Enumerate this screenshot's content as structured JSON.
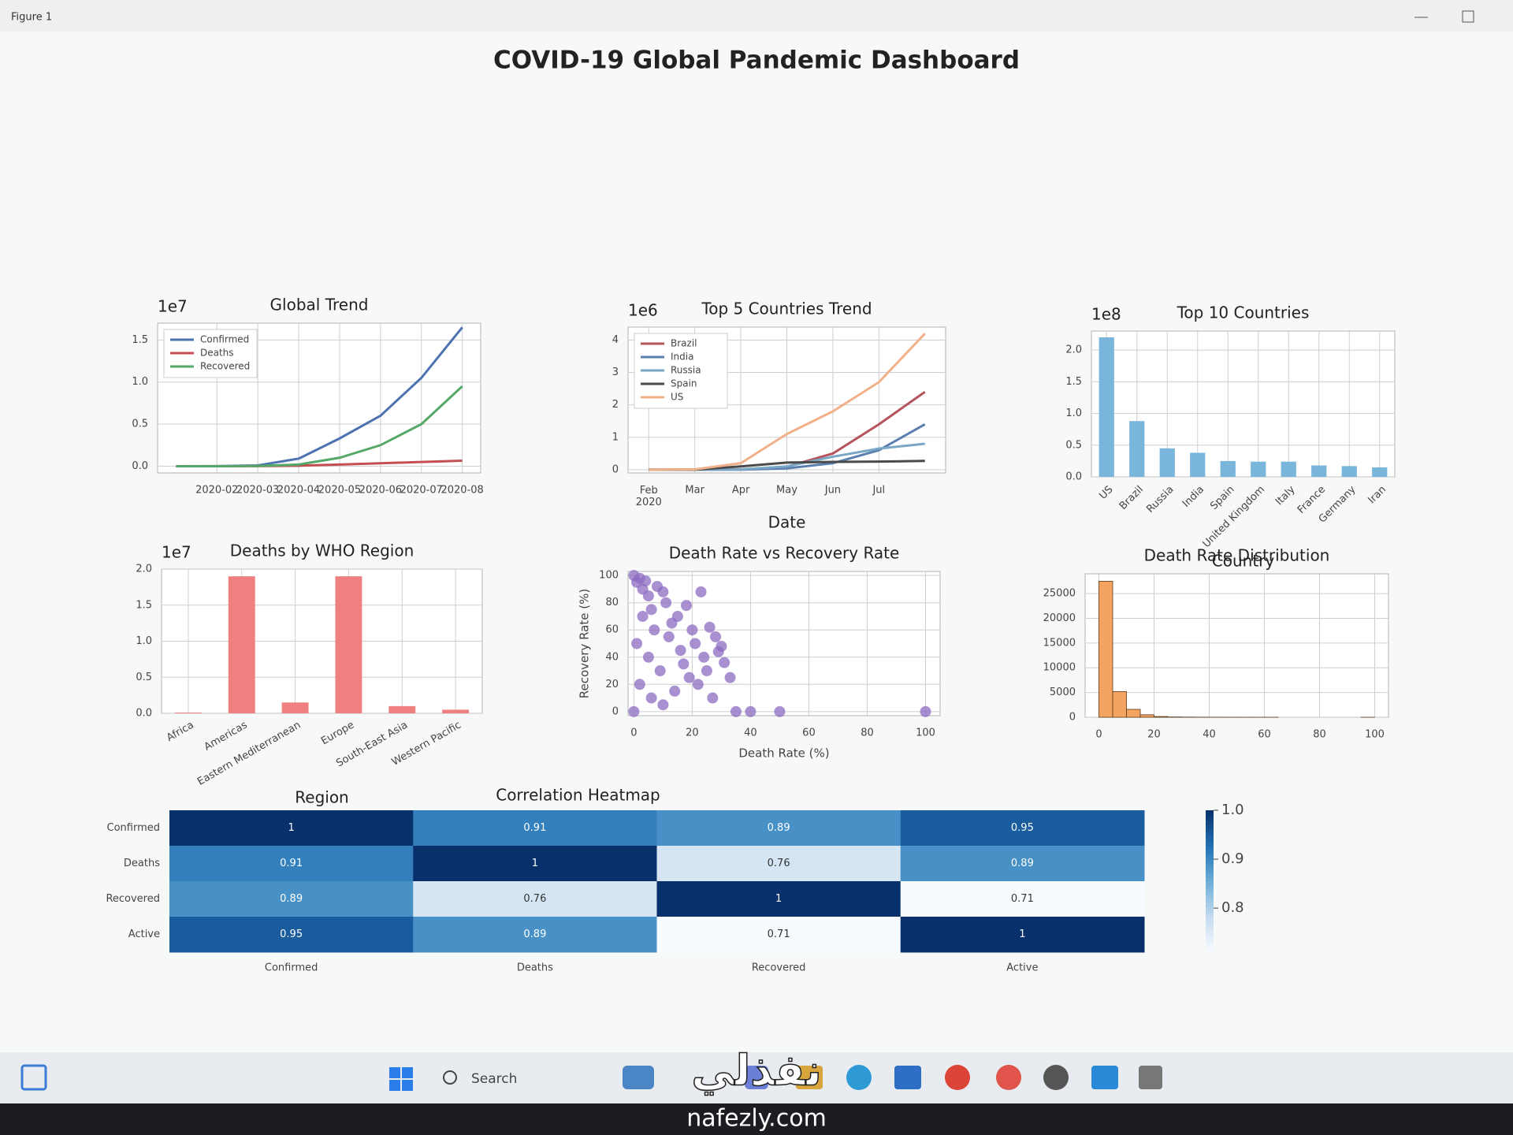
{
  "window": {
    "title": "Figure 1"
  },
  "suptitle": "COVID-19 Global Pandemic Dashboard",
  "chart_data": [
    {
      "type": "line",
      "title": "Global Trend",
      "offset_label": "1e7",
      "x": [
        null,
        "2020-02",
        "2020-03",
        "2020-04",
        "2020-05",
        "2020-06",
        "2020-07",
        "2020-08"
      ],
      "series": [
        {
          "name": "Confirmed",
          "color": "#4c72b0",
          "values": [
            0,
            0.001,
            0.009,
            0.09,
            0.33,
            0.6,
            1.05,
            1.65
          ]
        },
        {
          "name": "Deaths",
          "color": "#c44e52",
          "values": [
            0,
            0,
            0.001,
            0.006,
            0.02,
            0.035,
            0.05,
            0.065
          ]
        },
        {
          "name": "Recovered",
          "color": "#55a868",
          "values": [
            0,
            0,
            0.002,
            0.02,
            0.1,
            0.25,
            0.5,
            0.95
          ]
        }
      ],
      "ylim": [
        -0.08,
        1.7
      ],
      "yticks": [
        {
          "value": 0,
          "label": "0.0"
        },
        0.5,
        {
          "value": 1,
          "label": "1.0"
        },
        1.5
      ],
      "grid": true,
      "legend": "upper left"
    },
    {
      "type": "line",
      "title": "Top 5 Countries Trend",
      "offset_label": "1e6",
      "xlabel": "Date",
      "x": [
        "Feb\n2020",
        "Mar",
        "Apr",
        "May",
        "Jun",
        "Jul",
        null
      ],
      "series": [
        {
          "name": "Brazil",
          "color": "#b5545c",
          "values": [
            0,
            0,
            0.01,
            0.09,
            0.5,
            1.4,
            2.4
          ]
        },
        {
          "name": "India",
          "color": "#5b7fb0",
          "values": [
            0,
            0,
            0,
            0.04,
            0.2,
            0.6,
            1.4
          ]
        },
        {
          "name": "Russia",
          "color": "#7ba7c7",
          "values": [
            0,
            0,
            0.01,
            0.1,
            0.4,
            0.65,
            0.8
          ]
        },
        {
          "name": "Spain",
          "color": "#4a4a4a",
          "values": [
            0,
            0,
            0.1,
            0.22,
            0.24,
            0.25,
            0.27
          ]
        },
        {
          "name": "US",
          "color": "#f0b08a",
          "values": [
            0,
            0.01,
            0.2,
            1.1,
            1.8,
            2.7,
            4.2
          ]
        }
      ],
      "ylim": [
        -0.1,
        4.4
      ],
      "yticks": [
        0,
        1,
        2,
        3,
        4
      ],
      "grid": true,
      "legend": "upper left"
    },
    {
      "type": "bar",
      "title": "Top 10 Countries",
      "offset_label": "1e8",
      "xlabel": "Country",
      "categories": [
        "US",
        "Brazil",
        "Russia",
        "India",
        "Spain",
        "United Kingdom",
        "Italy",
        "France",
        "Germany",
        "Iran"
      ],
      "values": [
        2.2,
        0.88,
        0.45,
        0.38,
        0.25,
        0.24,
        0.24,
        0.18,
        0.17,
        0.15
      ],
      "color": "#7ab6dc",
      "ylim": [
        0,
        2.3
      ],
      "yticks": [
        {
          "value": 0,
          "label": "0.0"
        },
        0.5,
        {
          "value": 1,
          "label": "1.0"
        },
        1.5,
        {
          "value": 2,
          "label": "2.0"
        }
      ],
      "grid": true
    },
    {
      "type": "bar",
      "title": "Deaths by WHO Region",
      "offset_label": "1e7",
      "xlabel": "Region",
      "categories": [
        "Africa",
        "Americas",
        "Eastern Mediterranean",
        "Europe",
        "South-East Asia",
        "Western Pacific"
      ],
      "values": [
        0.01,
        1.9,
        0.15,
        1.9,
        0.1,
        0.05
      ],
      "color": "#f08080",
      "ylim": [
        0,
        2.0
      ],
      "yticks": [
        {
          "value": 0,
          "label": "0.0"
        },
        0.5,
        {
          "value": 1,
          "label": "1.0"
        },
        1.5,
        {
          "value": 2,
          "label": "2.0"
        }
      ],
      "grid": true
    },
    {
      "type": "scatter",
      "title": "Death Rate vs Recovery Rate",
      "xlabel": "Death Rate (%)",
      "ylabel": "Recovery Rate (%)",
      "color": "#8c6bc2",
      "x": [
        0,
        0,
        1,
        1,
        2,
        2,
        3,
        3,
        4,
        5,
        5,
        6,
        6,
        7,
        8,
        9,
        10,
        10,
        11,
        12,
        13,
        14,
        15,
        16,
        17,
        18,
        19,
        20,
        21,
        22,
        23,
        24,
        25,
        26,
        27,
        28,
        29,
        30,
        31,
        33,
        35,
        40,
        50,
        100
      ],
      "y": [
        100,
        0,
        95,
        50,
        98,
        20,
        90,
        70,
        96,
        40,
        85,
        10,
        75,
        60,
        92,
        30,
        88,
        5,
        80,
        55,
        65,
        15,
        70,
        45,
        35,
        78,
        25,
        60,
        50,
        20,
        88,
        40,
        30,
        62,
        10,
        55,
        44,
        48,
        36,
        25,
        0,
        0,
        0,
        0
      ],
      "xlim": [
        -2,
        105
      ],
      "ylim": [
        -3,
        103
      ],
      "xticks": [
        0,
        20,
        40,
        60,
        80,
        100
      ],
      "yticks": [
        0,
        20,
        40,
        60,
        80,
        100
      ],
      "grid": true
    },
    {
      "type": "histogram",
      "title": "Death Rate Distribution",
      "color": "#f4a460",
      "bins": [
        0,
        5,
        10,
        15,
        20,
        25,
        30,
        35,
        40,
        45,
        50,
        55,
        60,
        65,
        70,
        75,
        80,
        85,
        90,
        95,
        100
      ],
      "values": [
        27500,
        5200,
        1600,
        500,
        150,
        60,
        30,
        10,
        5,
        3,
        2,
        1,
        1,
        0,
        0,
        0,
        0,
        0,
        0,
        1
      ],
      "xlim": [
        -5,
        105
      ],
      "ylim": [
        0,
        29000
      ],
      "xticks": [
        0,
        20,
        40,
        60,
        80,
        100
      ],
      "yticks": [
        0,
        5000,
        10000,
        15000,
        20000,
        25000
      ],
      "grid": true
    },
    {
      "type": "heatmap",
      "title": "Correlation Heatmap",
      "x_labels": [
        "Confirmed",
        "Deaths",
        "Recovered",
        "Active"
      ],
      "y_labels": [
        "Confirmed",
        "Deaths",
        "Recovered",
        "Active"
      ],
      "values": [
        [
          1,
          0.91,
          0.89,
          0.95
        ],
        [
          0.91,
          1,
          0.76,
          0.89
        ],
        [
          0.89,
          0.76,
          1,
          0.71
        ],
        [
          0.95,
          0.89,
          0.71,
          1
        ]
      ],
      "colorbar_lim": [
        0.71,
        1
      ],
      "colorbar_ticks": [
        {
          "value": 1,
          "label": "1.0"
        },
        0.9,
        0.8
      ],
      "colormap": "Blues"
    }
  ],
  "taskbar": {
    "search": "Search"
  },
  "watermark": {
    "arabic": "نفذلي",
    "site": "nafezly.com"
  }
}
